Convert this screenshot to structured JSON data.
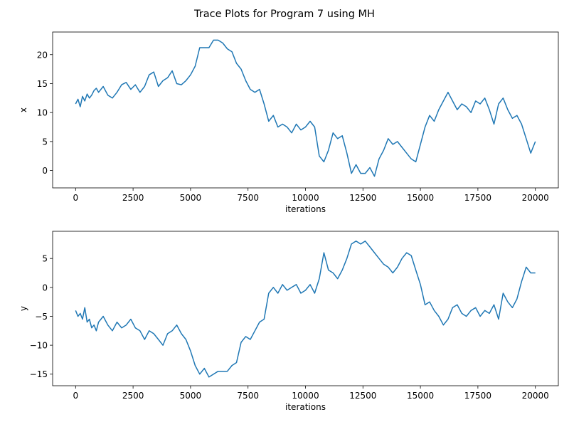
{
  "figure": {
    "title": "Trace Plots for Program 7 using MH"
  },
  "chart_data": [
    {
      "type": "line",
      "xlabel": "iterations",
      "ylabel": "x",
      "xlim": [
        -1000,
        21000
      ],
      "ylim": [
        -3.0,
        23.9
      ],
      "xticks": [
        0,
        2500,
        5000,
        7500,
        10000,
        12500,
        15000,
        17500,
        20000
      ],
      "yticks": [
        0,
        5,
        10,
        15,
        20
      ],
      "grid": false,
      "color": "#1f77b4",
      "series": [
        {
          "x": [
            0,
            100,
            200,
            300,
            400,
            500,
            600,
            700,
            800,
            900,
            1000,
            1200,
            1400,
            1600,
            1800,
            2000,
            2200,
            2400,
            2600,
            2800,
            3000,
            3200,
            3400,
            3600,
            3800,
            4000,
            4200,
            4400,
            4600,
            4800,
            5000,
            5200,
            5400,
            5600,
            5800,
            6000,
            6200,
            6400,
            6600,
            6800,
            7000,
            7200,
            7400,
            7600,
            7800,
            8000,
            8200,
            8400,
            8600,
            8800,
            9000,
            9200,
            9400,
            9600,
            9800,
            10000,
            10200,
            10400,
            10600,
            10800,
            11000,
            11200,
            11400,
            11600,
            11800,
            12000,
            12200,
            12400,
            12600,
            12800,
            13000,
            13200,
            13400,
            13600,
            13800,
            14000,
            14200,
            14400,
            14600,
            14800,
            15000,
            15200,
            15400,
            15600,
            15800,
            16000,
            16200,
            16400,
            16600,
            16800,
            17000,
            17200,
            17400,
            17600,
            17800,
            18000,
            18200,
            18400,
            18600,
            18800,
            19000,
            19200,
            19400,
            19600,
            19800,
            20000
          ],
          "values": [
            11.5,
            12.3,
            11.0,
            12.8,
            12.0,
            13.2,
            12.5,
            13.0,
            13.8,
            14.2,
            13.5,
            14.5,
            13.0,
            12.5,
            13.5,
            14.8,
            15.2,
            14.0,
            14.8,
            13.5,
            14.5,
            16.5,
            17.0,
            14.5,
            15.5,
            16.0,
            17.2,
            15.0,
            14.8,
            15.5,
            16.5,
            18.0,
            21.2,
            21.2,
            21.2,
            22.5,
            22.5,
            22.0,
            21.0,
            20.5,
            18.5,
            17.5,
            15.5,
            14.0,
            13.5,
            14.0,
            11.5,
            8.5,
            9.5,
            7.5,
            8.0,
            7.5,
            6.5,
            8.0,
            7.0,
            7.5,
            8.5,
            7.5,
            2.5,
            1.5,
            3.5,
            6.5,
            5.5,
            6.0,
            3.0,
            -0.5,
            1.0,
            -0.5,
            -0.5,
            0.5,
            -1.0,
            2.0,
            3.5,
            5.5,
            4.5,
            5.0,
            4.0,
            3.0,
            2.0,
            1.5,
            4.5,
            7.5,
            9.5,
            8.5,
            10.5,
            12.0,
            13.5,
            12.0,
            10.5,
            11.5,
            11.0,
            10.0,
            12.0,
            11.5,
            12.5,
            10.5,
            8.0,
            11.5,
            12.5,
            10.5,
            9.0,
            9.5,
            8.0,
            5.5,
            3.0,
            5.0
          ]
        }
      ]
    },
    {
      "type": "line",
      "xlabel": "iterations",
      "ylabel": "y",
      "xlim": [
        -1000,
        21000
      ],
      "ylim": [
        -17.0,
        9.7
      ],
      "xticks": [
        0,
        2500,
        5000,
        7500,
        10000,
        12500,
        15000,
        17500,
        20000
      ],
      "yticks": [
        -15,
        -10,
        -5,
        0,
        5
      ],
      "grid": false,
      "color": "#1f77b4",
      "series": [
        {
          "x": [
            0,
            100,
            200,
            300,
            400,
            500,
            600,
            700,
            800,
            900,
            1000,
            1200,
            1400,
            1600,
            1800,
            2000,
            2200,
            2400,
            2600,
            2800,
            3000,
            3200,
            3400,
            3600,
            3800,
            4000,
            4200,
            4400,
            4600,
            4800,
            5000,
            5200,
            5400,
            5600,
            5800,
            6000,
            6200,
            6400,
            6600,
            6800,
            7000,
            7200,
            7400,
            7600,
            7800,
            8000,
            8200,
            8400,
            8600,
            8800,
            9000,
            9200,
            9400,
            9600,
            9800,
            10000,
            10200,
            10400,
            10600,
            10800,
            11000,
            11200,
            11400,
            11600,
            11800,
            12000,
            12200,
            12400,
            12600,
            12800,
            13000,
            13200,
            13400,
            13600,
            13800,
            14000,
            14200,
            14400,
            14600,
            14800,
            15000,
            15200,
            15400,
            15600,
            15800,
            16000,
            16200,
            16400,
            16600,
            16800,
            17000,
            17200,
            17400,
            17600,
            17800,
            18000,
            18200,
            18400,
            18600,
            18800,
            19000,
            19200,
            19400,
            19600,
            19800,
            20000
          ],
          "values": [
            -4.0,
            -5.0,
            -4.5,
            -5.5,
            -3.5,
            -6.0,
            -5.5,
            -7.0,
            -6.5,
            -7.5,
            -6.0,
            -5.0,
            -6.5,
            -7.5,
            -6.0,
            -7.0,
            -6.5,
            -5.5,
            -7.0,
            -7.5,
            -9.0,
            -7.5,
            -8.0,
            -9.0,
            -10.0,
            -8.0,
            -7.5,
            -6.5,
            -8.0,
            -9.0,
            -11.0,
            -13.5,
            -15.0,
            -14.0,
            -15.5,
            -15.0,
            -14.5,
            -14.5,
            -14.5,
            -13.5,
            -13.0,
            -9.5,
            -8.5,
            -9.0,
            -7.5,
            -6.0,
            -5.5,
            -1.0,
            0.0,
            -1.0,
            0.5,
            -0.5,
            0.0,
            0.5,
            -1.0,
            -0.5,
            0.5,
            -1.0,
            1.5,
            6.0,
            3.0,
            2.5,
            1.5,
            3.0,
            5.0,
            7.5,
            8.0,
            7.5,
            8.0,
            7.0,
            6.0,
            5.0,
            4.0,
            3.5,
            2.5,
            3.5,
            5.0,
            6.0,
            5.5,
            3.0,
            0.5,
            -3.0,
            -2.5,
            -4.0,
            -5.0,
            -6.5,
            -5.5,
            -3.5,
            -3.0,
            -4.5,
            -5.0,
            -4.0,
            -3.5,
            -5.0,
            -4.0,
            -4.5,
            -3.0,
            -5.5,
            -1.0,
            -2.5,
            -3.5,
            -2.0,
            1.0,
            3.5,
            2.5,
            2.5
          ]
        }
      ]
    }
  ]
}
